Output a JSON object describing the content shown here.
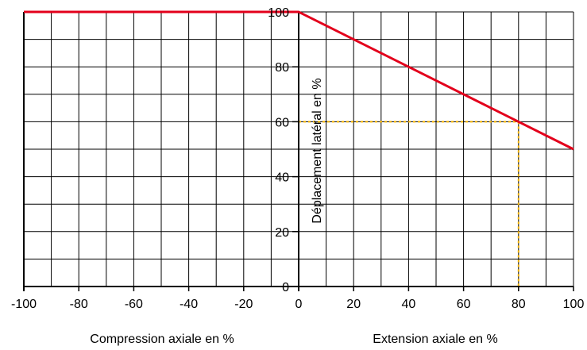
{
  "chart_data": {
    "type": "line",
    "x_ticks": [
      -100,
      -80,
      -60,
      -40,
      -20,
      0,
      20,
      40,
      60,
      80,
      100
    ],
    "x_tick_labels": [
      "-100",
      "-80",
      "-60",
      "-40",
      "-20",
      "0",
      "20",
      "40",
      "60",
      "80",
      "100"
    ],
    "y_ticks": [
      0,
      20,
      40,
      60,
      80,
      100
    ],
    "y_tick_labels": [
      "0",
      "20",
      "40",
      "60",
      "80",
      "100"
    ],
    "xlim": [
      -100,
      100
    ],
    "ylim": [
      0,
      100
    ],
    "xlabel_left": "Compression axiale en %",
    "xlabel_right": "Extension axiale en %",
    "ylabel": "Déplacement latéral en %",
    "grid": true,
    "series": [
      {
        "color": "#e3001b",
        "points": [
          [
            -100,
            100
          ],
          [
            0,
            100
          ],
          [
            100,
            50
          ]
        ]
      }
    ],
    "annotation": {
      "color": "#f5b400",
      "x": 80,
      "y": 60
    }
  }
}
